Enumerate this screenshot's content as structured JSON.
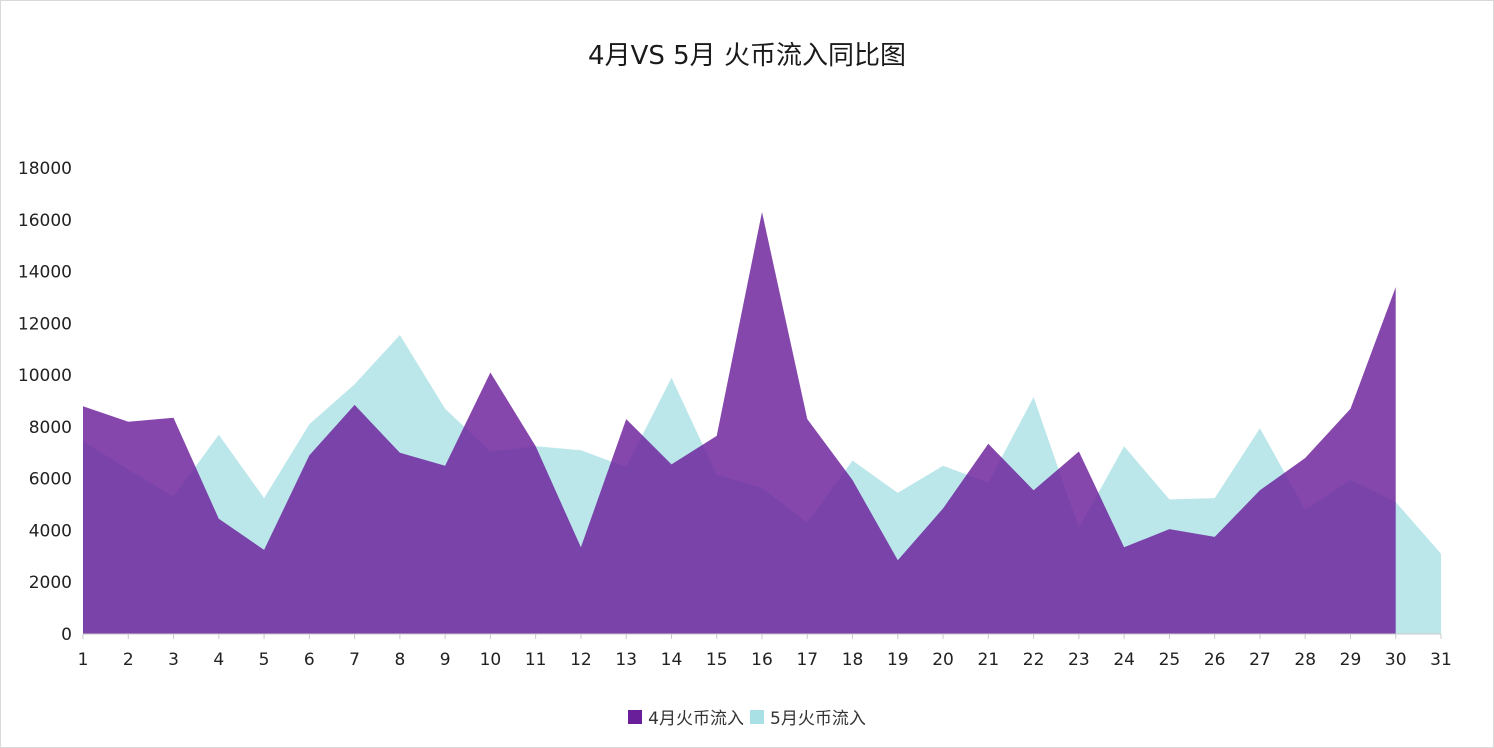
{
  "chart_data": {
    "type": "area",
    "title": "4月VS 5月 火币流入同比图",
    "xlabel": "",
    "ylabel": "",
    "x": [
      "1",
      "2",
      "3",
      "4",
      "5",
      "6",
      "7",
      "8",
      "9",
      "10",
      "11",
      "12",
      "13",
      "14",
      "15",
      "16",
      "17",
      "18",
      "19",
      "20",
      "21",
      "22",
      "23",
      "24",
      "25",
      "26",
      "27",
      "28",
      "29",
      "30",
      "31"
    ],
    "ylim": [
      0,
      18000
    ],
    "yticks": [
      "0",
      "2000",
      "4000",
      "6000",
      "8000",
      "10000",
      "12000",
      "14000",
      "16000",
      "18000"
    ],
    "grid": false,
    "legend_position": "bottom",
    "series": [
      {
        "name": "4月火币流入",
        "color": "#6a1f9a",
        "values": [
          8800,
          8200,
          8350,
          4450,
          3250,
          6900,
          8850,
          7000,
          6500,
          10100,
          7250,
          3350,
          8300,
          6550,
          7650,
          16300,
          8300,
          5950,
          2850,
          4850,
          7350,
          5550,
          7050,
          3350,
          4050,
          3750,
          5550,
          6800,
          8700,
          13400,
          null
        ]
      },
      {
        "name": "5月火币流入",
        "color": "#a8e0e6",
        "values": [
          7450,
          6350,
          5300,
          7700,
          5250,
          8100,
          9650,
          11550,
          8700,
          7050,
          7250,
          7100,
          6450,
          9900,
          6150,
          5650,
          4300,
          6700,
          5450,
          6500,
          5850,
          9150,
          4100,
          7250,
          5200,
          5250,
          7950,
          4800,
          5950,
          5100,
          3100
        ]
      }
    ]
  }
}
